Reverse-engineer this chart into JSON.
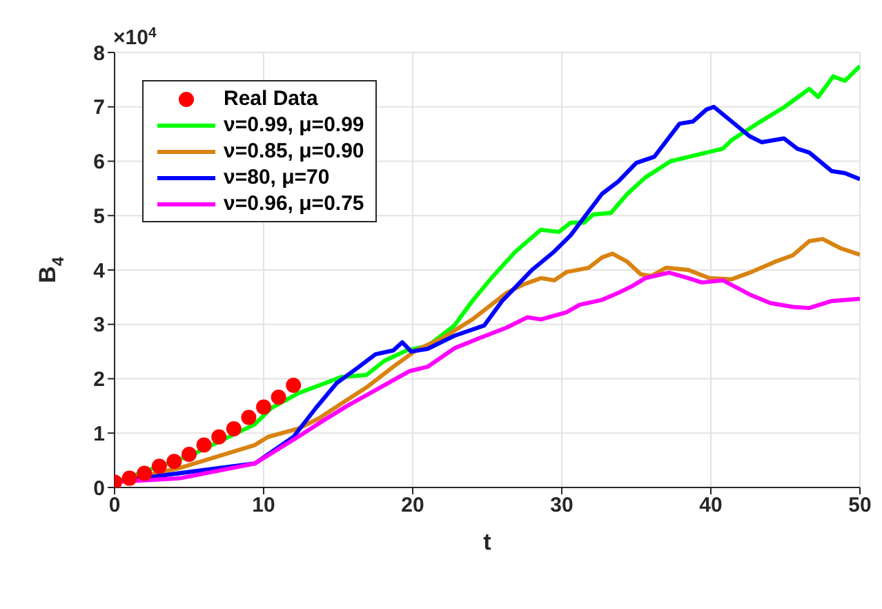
{
  "chart_data": {
    "type": "line",
    "xlabel": "t",
    "ylabel": "B$_{4}$",
    "annotations": [
      "×10$^{4}$"
    ],
    "xlim": [
      0,
      50
    ],
    "xticks": [
      0,
      10,
      20,
      30,
      40,
      50
    ],
    "ylim": [
      0,
      8
    ],
    "yticks": [
      0,
      1,
      2,
      3,
      4,
      5,
      6,
      7,
      8
    ],
    "grid": true,
    "legend": "top left",
    "series": [
      {
        "name": "Real Data",
        "type": "scatter",
        "color": "#ff0000",
        "x": [
          0,
          1,
          2,
          3,
          4,
          5,
          6,
          7,
          8,
          9,
          10,
          11,
          12
        ],
        "values": [
          0.1,
          0.17,
          0.26,
          0.39,
          0.48,
          0.61,
          0.78,
          0.93,
          1.08,
          1.29,
          1.48,
          1.66,
          1.88
        ]
      },
      {
        "name": "ν=0.99, μ=0.99",
        "color": "#00ff00",
        "x": [
          0,
          5.1,
          9.4,
          10.5,
          12.3,
          15.2,
          16.9,
          18.1,
          19.6,
          21,
          22.8,
          24,
          25.4,
          26.9,
          28.6,
          29.8,
          30.6,
          31.5,
          32.1,
          33.3,
          34.4,
          35.6,
          37.3,
          39.1,
          40.8,
          41.4,
          43.1,
          44.9,
          46.6,
          47.2,
          48.2,
          49,
          50
        ],
        "values": [
          0.1,
          0.59,
          1.16,
          1.46,
          1.73,
          2.03,
          2.07,
          2.33,
          2.52,
          2.6,
          2.98,
          3.43,
          3.89,
          4.34,
          4.74,
          4.7,
          4.87,
          4.87,
          5.02,
          5.05,
          5.4,
          5.7,
          6.0,
          6.12,
          6.23,
          6.39,
          6.69,
          6.99,
          7.33,
          7.18,
          7.56,
          7.48,
          7.75
        ]
      },
      {
        "name": "ν=0.85, μ=0.90",
        "color": "#d98310",
        "x": [
          0,
          4.4,
          9.4,
          10.3,
          12.3,
          13.7,
          15.2,
          16.9,
          18.7,
          20.2,
          22,
          24,
          26.3,
          27.4,
          28.6,
          29.5,
          30.3,
          31.8,
          32.7,
          33.4,
          34.4,
          35.3,
          36,
          37,
          38.5,
          39.9,
          41.4,
          42.6,
          44.3,
          45.5,
          46.6,
          47.5,
          48.7,
          50
        ],
        "values": [
          0.1,
          0.36,
          0.78,
          0.93,
          1.08,
          1.27,
          1.54,
          1.84,
          2.22,
          2.52,
          2.75,
          3.09,
          3.58,
          3.73,
          3.85,
          3.81,
          3.96,
          4.04,
          4.23,
          4.3,
          4.15,
          3.92,
          3.89,
          4.04,
          4.0,
          3.85,
          3.83,
          3.95,
          4.15,
          4.27,
          4.53,
          4.57,
          4.4,
          4.28
        ]
      },
      {
        "name": "ν=80, μ=70",
        "color": "#0000ff",
        "x": [
          0,
          4,
          9.4,
          12,
          13.5,
          14.9,
          16.4,
          17.5,
          18.7,
          19.3,
          19.9,
          21,
          22.8,
          24.8,
          26,
          28,
          29.5,
          30.6,
          32.7,
          33.8,
          35,
          36.2,
          37.9,
          38.8,
          39.7,
          40.2,
          41.4,
          42.6,
          43.4,
          44.9,
          45.8,
          46.6,
          48.1,
          49,
          50
        ],
        "values": [
          0.1,
          0.25,
          0.44,
          0.93,
          1.46,
          1.92,
          2.22,
          2.45,
          2.52,
          2.67,
          2.5,
          2.55,
          2.79,
          2.98,
          3.43,
          4.0,
          4.34,
          4.64,
          5.4,
          5.63,
          5.97,
          6.08,
          6.69,
          6.73,
          6.95,
          7.0,
          6.73,
          6.46,
          6.35,
          6.42,
          6.23,
          6.16,
          5.82,
          5.78,
          5.67
        ]
      },
      {
        "name": "ν=0.96, μ=0.75",
        "color": "#ff00ff",
        "x": [
          0,
          4.4,
          9.4,
          10.3,
          12.3,
          14,
          15.6,
          18.1,
          19.8,
          21,
          22.8,
          24.5,
          26.3,
          27.7,
          28.6,
          30.3,
          31.2,
          32.7,
          33.8,
          34.7,
          35.6,
          37.2,
          38.5,
          39.4,
          40.8,
          42.6,
          44,
          45.5,
          46.6,
          48.1,
          50
        ],
        "values": [
          0.1,
          0.17,
          0.44,
          0.59,
          0.93,
          1.23,
          1.5,
          1.88,
          2.14,
          2.22,
          2.56,
          2.75,
          2.94,
          3.13,
          3.09,
          3.22,
          3.36,
          3.45,
          3.58,
          3.7,
          3.85,
          3.95,
          3.85,
          3.77,
          3.81,
          3.55,
          3.39,
          3.32,
          3.3,
          3.43,
          3.47
        ]
      }
    ]
  }
}
